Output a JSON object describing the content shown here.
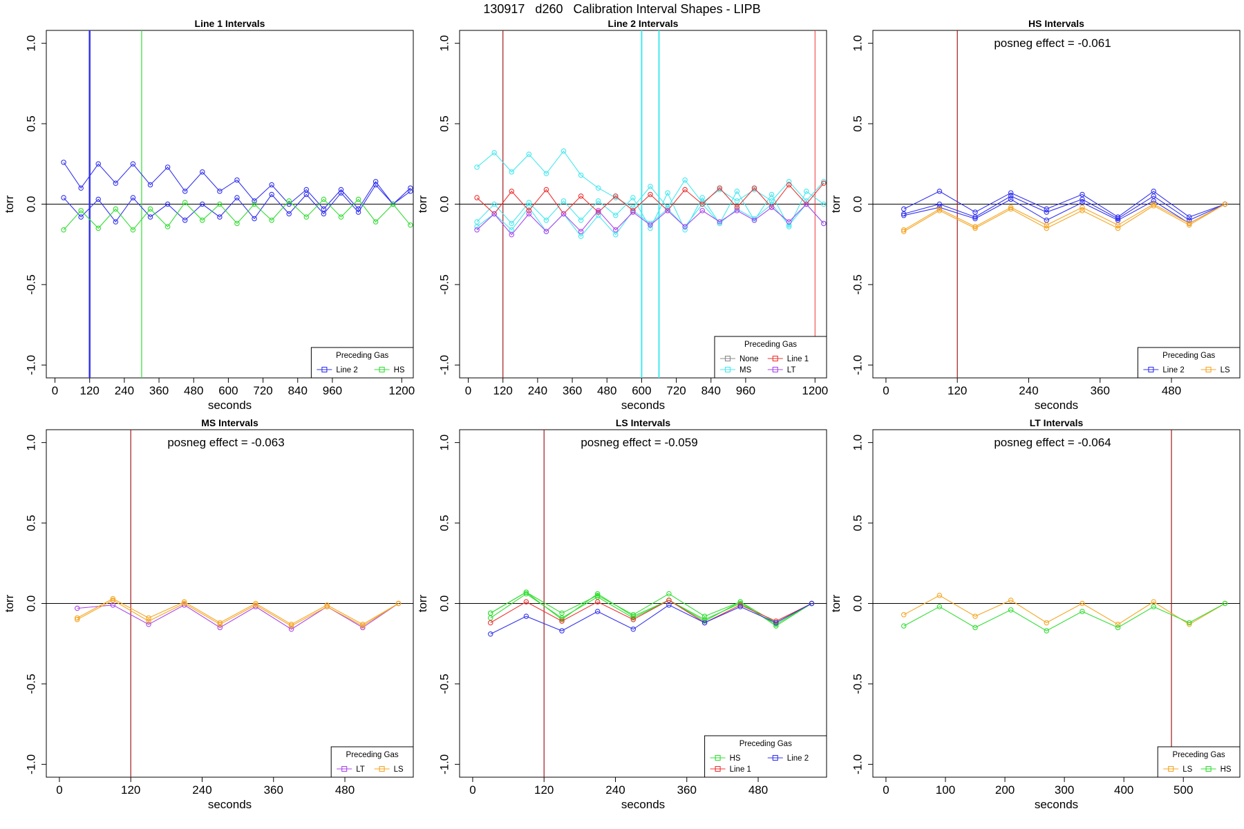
{
  "title": "130917   d260   Calibration Interval Shapes - LIPB",
  "colors": {
    "Line 2": "#3333ee",
    "HS": "#33dd33",
    "MS": "#44e8f0",
    "Line 1": "#ee3333",
    "LT": "#aa44ee",
    "LS": "#f5a623",
    "None": "#888888",
    "marker": "#a01818"
  },
  "chart_data": [
    {
      "type": "line",
      "title": "Line 1 Intervals",
      "xlabel": "seconds",
      "ylabel": "torr",
      "xlim": [
        -30,
        1240
      ],
      "ylim": [
        -1.08,
        1.08
      ],
      "xticks": [
        0,
        120,
        240,
        360,
        480,
        600,
        720,
        840,
        960,
        1200
      ],
      "yticks": [
        -1.0,
        -0.5,
        0.0,
        0.5,
        1.0
      ],
      "annotation": "",
      "legend": {
        "title": "Preceding Gas",
        "entries": [
          "Line 2",
          "HS"
        ],
        "position": "bottom-right",
        "columns": 2
      },
      "vlines": [
        {
          "x": 120,
          "color": "Line 2",
          "width": 2.5
        },
        {
          "x": 300,
          "color": "HS",
          "width": 1.2
        }
      ],
      "series": [
        {
          "name": "Line 2",
          "x": [
            30,
            90,
            150,
            210,
            270,
            330,
            390,
            450,
            510,
            570,
            630,
            690,
            750,
            810,
            870,
            930,
            990,
            1050,
            1110,
            1170,
            1230
          ],
          "values": [
            0.26,
            0.1,
            0.25,
            0.13,
            0.25,
            0.12,
            0.23,
            0.08,
            0.2,
            0.08,
            0.15,
            0.02,
            0.12,
            0.0,
            0.09,
            -0.03,
            0.09,
            -0.03,
            0.14,
            0.0,
            0.1
          ]
        },
        {
          "name": "Line 2",
          "x": [
            30,
            90,
            150,
            210,
            270,
            330,
            390,
            450,
            510,
            570,
            630,
            690,
            750,
            810,
            870,
            930,
            990,
            1050,
            1110,
            1170,
            1230
          ],
          "values": [
            0.04,
            -0.08,
            0.03,
            -0.11,
            0.04,
            -0.08,
            0.0,
            -0.1,
            0.0,
            -0.08,
            0.04,
            -0.09,
            0.06,
            -0.06,
            0.06,
            -0.06,
            0.07,
            -0.05,
            0.12,
            0.0,
            0.08
          ]
        },
        {
          "name": "HS",
          "x": [
            30,
            90,
            150,
            210,
            270,
            330,
            390,
            450,
            510,
            570,
            630,
            690,
            750,
            810,
            870,
            930,
            990,
            1050,
            1110,
            1170,
            1230
          ],
          "values": [
            -0.16,
            -0.04,
            -0.15,
            -0.03,
            -0.16,
            -0.03,
            -0.14,
            0.01,
            -0.1,
            0.0,
            -0.12,
            0.0,
            -0.1,
            0.02,
            -0.08,
            0.03,
            -0.08,
            0.03,
            -0.11,
            0.0,
            -0.13
          ]
        }
      ]
    },
    {
      "type": "line",
      "title": "Line 2 Intervals",
      "xlabel": "seconds",
      "ylabel": "torr",
      "xlim": [
        -30,
        1240
      ],
      "ylim": [
        -1.08,
        1.08
      ],
      "xticks": [
        0,
        120,
        240,
        360,
        480,
        600,
        720,
        840,
        960,
        1200
      ],
      "yticks": [
        -1.0,
        -0.5,
        0.0,
        0.5,
        1.0
      ],
      "annotation": "",
      "legend": {
        "title": "Preceding Gas",
        "entries": [
          "None",
          "Line 1",
          "MS",
          "LT"
        ],
        "position": "bottom-right",
        "columns": 2
      },
      "vlines": [
        {
          "x": 120,
          "color": "marker",
          "width": 1.2
        },
        {
          "x": 600,
          "color": "MS",
          "width": 2
        },
        {
          "x": 660,
          "color": "MS",
          "width": 2
        },
        {
          "x": 1200,
          "color": "Line 1",
          "width": 1
        }
      ],
      "series": [
        {
          "name": "MS",
          "x": [
            30,
            90,
            150,
            210,
            270,
            330,
            390,
            450,
            510,
            570,
            630,
            690,
            750,
            810,
            870,
            930,
            990,
            1050,
            1110,
            1170,
            1230
          ],
          "values": [
            0.23,
            0.32,
            0.2,
            0.31,
            0.19,
            0.33,
            0.18,
            0.1,
            0.04,
            -0.02,
            0.11,
            -0.02,
            0.15,
            0.01,
            0.09,
            0.02,
            0.09,
            0.02,
            0.14,
            0.02,
            0.14
          ]
        },
        {
          "name": "MS",
          "x": [
            30,
            90,
            150,
            210,
            270,
            330,
            390,
            450,
            510,
            570,
            630,
            690,
            750,
            810,
            870,
            930,
            990,
            1050,
            1110,
            1170,
            1230
          ],
          "values": [
            -0.11,
            0.0,
            -0.12,
            0.01,
            -0.1,
            0.02,
            -0.1,
            0.02,
            -0.07,
            0.04,
            -0.15,
            0.07,
            -0.16,
            0.04,
            -0.12,
            0.08,
            -0.1,
            0.06,
            -0.14,
            0.08,
            0.0
          ]
        },
        {
          "name": "MS",
          "x": [
            30,
            90,
            150,
            210,
            270,
            330,
            390,
            450,
            510,
            570,
            630,
            690,
            750,
            810,
            870,
            930,
            990,
            1050,
            1110,
            1170,
            1230
          ],
          "values": [
            -0.14,
            -0.06,
            -0.16,
            -0.02,
            -0.17,
            -0.06,
            -0.2,
            -0.07,
            -0.19,
            -0.04,
            -0.12,
            -0.03,
            -0.14,
            0.0,
            -0.12,
            -0.03,
            -0.09,
            0.0,
            -0.13,
            0.0,
            -0.12
          ]
        },
        {
          "name": "Line 1",
          "x": [
            30,
            90,
            150,
            210,
            270,
            330,
            390,
            450,
            510,
            570,
            630,
            690,
            750,
            810,
            870,
            930,
            990,
            1050,
            1110,
            1170,
            1230
          ],
          "values": [
            0.04,
            -0.06,
            0.08,
            -0.04,
            0.09,
            -0.06,
            0.05,
            -0.05,
            0.05,
            -0.04,
            0.06,
            -0.04,
            0.09,
            0.0,
            0.1,
            -0.02,
            0.1,
            -0.02,
            0.12,
            0.0,
            0.13
          ]
        },
        {
          "name": "LT",
          "x": [
            30,
            90,
            150,
            210,
            270,
            330,
            390,
            450,
            510,
            570,
            630,
            690,
            750,
            810,
            870,
            930,
            990,
            1050,
            1110,
            1170,
            1230
          ],
          "values": [
            -0.16,
            -0.06,
            -0.19,
            -0.06,
            -0.17,
            -0.06,
            -0.17,
            -0.04,
            -0.16,
            -0.05,
            -0.13,
            -0.04,
            -0.14,
            -0.04,
            -0.11,
            -0.04,
            -0.1,
            -0.02,
            -0.11,
            0.0,
            -0.12
          ]
        }
      ]
    },
    {
      "type": "line",
      "title": "HS Intervals",
      "xlabel": "seconds",
      "ylabel": "torr",
      "xlim": [
        -22,
        595
      ],
      "ylim": [
        -1.08,
        1.08
      ],
      "xticks": [
        0,
        120,
        240,
        360,
        480
      ],
      "yticks": [
        -1.0,
        -0.5,
        0.0,
        0.5,
        1.0
      ],
      "annotation": "posneg effect = -0.061",
      "legend": {
        "title": "Preceding Gas",
        "entries": [
          "Line 2",
          "LS"
        ],
        "position": "bottom-right",
        "columns": 2
      },
      "vlines": [
        {
          "x": 120,
          "color": "marker",
          "width": 1.2
        }
      ],
      "series": [
        {
          "name": "Line 2",
          "x": [
            30,
            90,
            150,
            210,
            270,
            330,
            390,
            450,
            510,
            570
          ],
          "values": [
            -0.03,
            0.08,
            -0.05,
            0.07,
            -0.03,
            0.06,
            -0.08,
            0.08,
            -0.08,
            0.0
          ]
        },
        {
          "name": "Line 2",
          "x": [
            30,
            90,
            150,
            210,
            270,
            330,
            390,
            450,
            510,
            570
          ],
          "values": [
            -0.06,
            0.0,
            -0.08,
            0.05,
            -0.05,
            0.03,
            -0.09,
            0.05,
            -0.1,
            0.0
          ]
        },
        {
          "name": "Line 2",
          "x": [
            30,
            90,
            150,
            210,
            270,
            330,
            390,
            450,
            510,
            570
          ],
          "values": [
            -0.07,
            -0.02,
            -0.09,
            0.03,
            -0.1,
            0.01,
            -0.1,
            0.02,
            -0.12,
            0.0
          ]
        },
        {
          "name": "LS",
          "x": [
            30,
            90,
            150,
            210,
            270,
            330,
            390,
            450,
            510,
            570
          ],
          "values": [
            -0.16,
            -0.03,
            -0.14,
            -0.02,
            -0.13,
            -0.02,
            -0.13,
            0.0,
            -0.12,
            0.0
          ]
        },
        {
          "name": "LS",
          "x": [
            30,
            90,
            150,
            210,
            270,
            330,
            390,
            450,
            510,
            570
          ],
          "values": [
            -0.17,
            -0.04,
            -0.15,
            -0.03,
            -0.15,
            -0.04,
            -0.15,
            -0.01,
            -0.13,
            0.0
          ]
        }
      ]
    },
    {
      "type": "line",
      "title": "MS Intervals",
      "xlabel": "seconds",
      "ylabel": "torr",
      "xlim": [
        -22,
        595
      ],
      "ylim": [
        -1.08,
        1.08
      ],
      "xticks": [
        0,
        120,
        240,
        360,
        480
      ],
      "yticks": [
        -1.0,
        -0.5,
        0.0,
        0.5,
        1.0
      ],
      "annotation": "posneg effect = -0.063",
      "legend": {
        "title": "Preceding Gas",
        "entries": [
          "LT",
          "LS"
        ],
        "position": "bottom-right",
        "columns": 2
      },
      "vlines": [
        {
          "x": 120,
          "color": "marker",
          "width": 1.2
        }
      ],
      "series": [
        {
          "name": "LT",
          "x": [
            30,
            90,
            150,
            210,
            270,
            330,
            390,
            450,
            510,
            570
          ],
          "values": [
            -0.03,
            -0.01,
            -0.13,
            -0.01,
            -0.15,
            -0.02,
            -0.16,
            -0.02,
            -0.15,
            0.0
          ]
        },
        {
          "name": "LS",
          "x": [
            30,
            90,
            150,
            210,
            270,
            330,
            390,
            450,
            510,
            570
          ],
          "values": [
            -0.09,
            0.03,
            -0.09,
            0.01,
            -0.12,
            0.0,
            -0.13,
            -0.01,
            -0.13,
            0.0
          ]
        },
        {
          "name": "LS",
          "x": [
            30,
            90,
            150,
            210,
            270,
            330,
            390,
            450,
            510,
            570
          ],
          "values": [
            -0.1,
            0.02,
            -0.11,
            0.0,
            -0.13,
            -0.01,
            -0.14,
            -0.02,
            -0.14,
            0.0
          ]
        }
      ]
    },
    {
      "type": "line",
      "title": "LS Intervals",
      "xlabel": "seconds",
      "ylabel": "torr",
      "xlim": [
        -22,
        595
      ],
      "ylim": [
        -1.08,
        1.08
      ],
      "xticks": [
        0,
        120,
        240,
        360,
        480
      ],
      "yticks": [
        -1.0,
        -0.5,
        0.0,
        0.5,
        1.0
      ],
      "annotation": "posneg effect = -0.059",
      "legend": {
        "title": "Preceding Gas",
        "entries": [
          "HS",
          "Line 2",
          "Line 1"
        ],
        "position": "bottom-right",
        "columns": 2
      },
      "vlines": [
        {
          "x": 120,
          "color": "marker",
          "width": 1.2
        }
      ],
      "series": [
        {
          "name": "HS",
          "x": [
            30,
            90,
            150,
            210,
            270,
            330,
            390,
            450,
            510,
            570
          ],
          "values": [
            -0.06,
            0.07,
            -0.06,
            0.05,
            -0.07,
            0.06,
            -0.08,
            0.01,
            -0.12,
            0.0
          ]
        },
        {
          "name": "HS",
          "x": [
            30,
            90,
            150,
            210,
            270,
            330,
            390,
            450,
            510,
            570
          ],
          "values": [
            -0.09,
            0.06,
            -0.09,
            0.04,
            -0.09,
            0.02,
            -0.1,
            0.0,
            -0.13,
            0.0
          ]
        },
        {
          "name": "HS",
          "x": [
            30,
            90,
            150,
            210,
            270,
            330,
            390,
            450,
            510,
            570
          ],
          "values": [
            -0.06,
            0.07,
            -0.1,
            0.06,
            -0.08,
            0.02,
            -0.11,
            0.01,
            -0.14,
            0.0
          ]
        },
        {
          "name": "Line 1",
          "x": [
            30,
            90,
            150,
            210,
            270,
            330,
            390,
            450,
            510,
            570
          ],
          "values": [
            -0.12,
            0.01,
            -0.11,
            0.01,
            -0.1,
            0.02,
            -0.12,
            -0.01,
            -0.11,
            0.0
          ]
        },
        {
          "name": "Line 2",
          "x": [
            30,
            90,
            150,
            210,
            270,
            330,
            390,
            450,
            510,
            570
          ],
          "values": [
            -0.19,
            -0.08,
            -0.17,
            -0.05,
            -0.16,
            -0.01,
            -0.12,
            -0.02,
            -0.12,
            0.0
          ]
        }
      ]
    },
    {
      "type": "line",
      "title": "LT Intervals",
      "xlabel": "seconds",
      "ylabel": "torr",
      "xlim": [
        -22,
        595
      ],
      "ylim": [
        -1.08,
        1.08
      ],
      "xticks": [
        0,
        100,
        200,
        300,
        400,
        500
      ],
      "yticks": [
        -1.0,
        -0.5,
        0.0,
        0.5,
        1.0
      ],
      "annotation": "posneg effect = -0.064",
      "legend": {
        "title": "Preceding Gas",
        "entries": [
          "LS",
          "HS"
        ],
        "position": "bottom-right",
        "columns": 2
      },
      "vlines": [
        {
          "x": 480,
          "color": "marker",
          "width": 1.2
        }
      ],
      "series": [
        {
          "name": "LS",
          "x": [
            30,
            90,
            150,
            210,
            270,
            330,
            390,
            450,
            510,
            570
          ],
          "values": [
            -0.07,
            0.05,
            -0.08,
            0.02,
            -0.12,
            0.0,
            -0.13,
            0.01,
            -0.13,
            0.0
          ]
        },
        {
          "name": "HS",
          "x": [
            30,
            90,
            150,
            210,
            270,
            330,
            390,
            450,
            510,
            570
          ],
          "values": [
            -0.14,
            -0.02,
            -0.15,
            -0.04,
            -0.17,
            -0.05,
            -0.15,
            -0.02,
            -0.12,
            0.0
          ]
        }
      ]
    }
  ]
}
